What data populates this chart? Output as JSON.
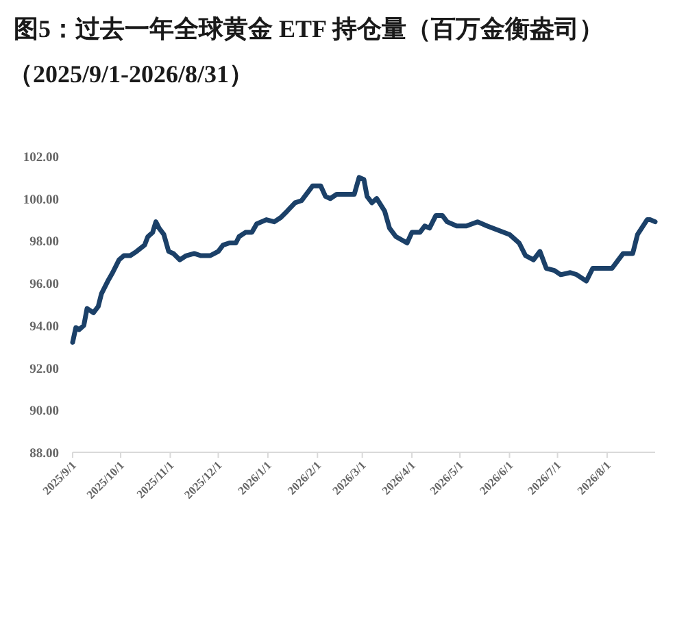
{
  "chart_data": {
    "type": "line",
    "title": "图5：过去一年全球黄金 ETF 持仓量（百万金衡盎司）",
    "subtitle": "（2025/9/1-2026/8/31）",
    "xlim": [
      "2025-09-01",
      "2026-08-31"
    ],
    "xticks": [
      {
        "value": "2025-09-01",
        "label": "2025/9/1"
      },
      {
        "value": "2025-10-01",
        "label": "2025/10/1"
      },
      {
        "value": "2025-11-01",
        "label": "2025/11/1"
      },
      {
        "value": "2025-12-01",
        "label": "2025/12/1"
      },
      {
        "value": "2026-01-01",
        "label": "2026/1/1"
      },
      {
        "value": "2026-02-01",
        "label": "2026/2/1"
      },
      {
        "value": "2026-03-01",
        "label": "2026/3/1"
      },
      {
        "value": "2026-04-01",
        "label": "2026/4/1"
      },
      {
        "value": "2026-05-01",
        "label": "2026/5/1"
      },
      {
        "value": "2026-06-01",
        "label": "2026/6/1"
      },
      {
        "value": "2026-07-01",
        "label": "2026/7/1"
      },
      {
        "value": "2026-08-01",
        "label": "2026/8/1"
      }
    ],
    "ylim": [
      88,
      102
    ],
    "yticks": [
      {
        "value": 88,
        "label": "88.00"
      },
      {
        "value": 90,
        "label": "90.00"
      },
      {
        "value": 92,
        "label": "92.00"
      },
      {
        "value": 94,
        "label": "94.00"
      },
      {
        "value": 96,
        "label": "96.00"
      },
      {
        "value": 98,
        "label": "98.00"
      },
      {
        "value": 100,
        "label": "100.00"
      },
      {
        "value": 102,
        "label": "102.00"
      }
    ],
    "grid": false,
    "marker": "none",
    "line_style": "solid",
    "series": [
      {
        "color": "#1b4068",
        "x": [
          "2025-09-01",
          "2025-09-03",
          "2025-09-05",
          "2025-09-08",
          "2025-09-10",
          "2025-09-14",
          "2025-09-17",
          "2025-09-19",
          "2025-09-23",
          "2025-09-26",
          "2025-09-30",
          "2025-10-03",
          "2025-10-07",
          "2025-10-11",
          "2025-10-16",
          "2025-10-18",
          "2025-10-21",
          "2025-10-23",
          "2025-10-25",
          "2025-10-28",
          "2025-10-31",
          "2025-11-03",
          "2025-11-07",
          "2025-11-11",
          "2025-11-16",
          "2025-11-20",
          "2025-11-26",
          "2025-12-01",
          "2025-12-04",
          "2025-12-08",
          "2025-12-12",
          "2025-12-14",
          "2025-12-18",
          "2025-12-22",
          "2025-12-25",
          "2025-12-31",
          "2026-01-05",
          "2026-01-09",
          "2026-01-13",
          "2026-01-18",
          "2026-01-22",
          "2026-01-29",
          "2026-02-03",
          "2026-02-06",
          "2026-02-09",
          "2026-02-13",
          "2026-02-20",
          "2026-02-24",
          "2026-02-27",
          "2026-03-02",
          "2026-03-04",
          "2026-03-07",
          "2026-03-10",
          "2026-03-15",
          "2026-03-18",
          "2026-03-22",
          "2026-03-29",
          "2026-04-01",
          "2026-04-06",
          "2026-04-09",
          "2026-04-12",
          "2026-04-16",
          "2026-04-20",
          "2026-04-23",
          "2026-04-29",
          "2026-05-05",
          "2026-05-12",
          "2026-05-18",
          "2026-05-25",
          "2026-06-01",
          "2026-06-07",
          "2026-06-11",
          "2026-06-16",
          "2026-06-20",
          "2026-06-24",
          "2026-06-29",
          "2026-07-03",
          "2026-07-09",
          "2026-07-13",
          "2026-07-19",
          "2026-07-23",
          "2026-07-31",
          "2026-08-04",
          "2026-08-11",
          "2026-08-17",
          "2026-08-20",
          "2026-08-26",
          "2026-08-28",
          "2026-08-31"
        ],
        "values": [
          93.2,
          93.9,
          93.8,
          94.0,
          94.8,
          94.6,
          94.9,
          95.5,
          96.1,
          96.5,
          97.1,
          97.3,
          97.3,
          97.5,
          97.8,
          98.2,
          98.4,
          98.9,
          98.6,
          98.3,
          97.5,
          97.4,
          97.1,
          97.3,
          97.4,
          97.3,
          97.3,
          97.5,
          97.8,
          97.9,
          97.9,
          98.2,
          98.4,
          98.4,
          98.8,
          99.0,
          98.9,
          99.1,
          99.4,
          99.8,
          99.9,
          100.6,
          100.6,
          100.1,
          100.0,
          100.2,
          100.2,
          100.2,
          101.0,
          100.9,
          100.1,
          99.8,
          100.0,
          99.4,
          98.6,
          98.2,
          97.9,
          98.4,
          98.4,
          98.7,
          98.6,
          99.2,
          99.2,
          98.9,
          98.7,
          98.7,
          98.9,
          98.7,
          98.5,
          98.3,
          97.9,
          97.3,
          97.1,
          97.5,
          96.7,
          96.6,
          96.4,
          96.5,
          96.4,
          96.1,
          96.7,
          96.7,
          96.7,
          97.4,
          97.4,
          98.3,
          99.0,
          99.0,
          98.9
        ]
      }
    ]
  }
}
